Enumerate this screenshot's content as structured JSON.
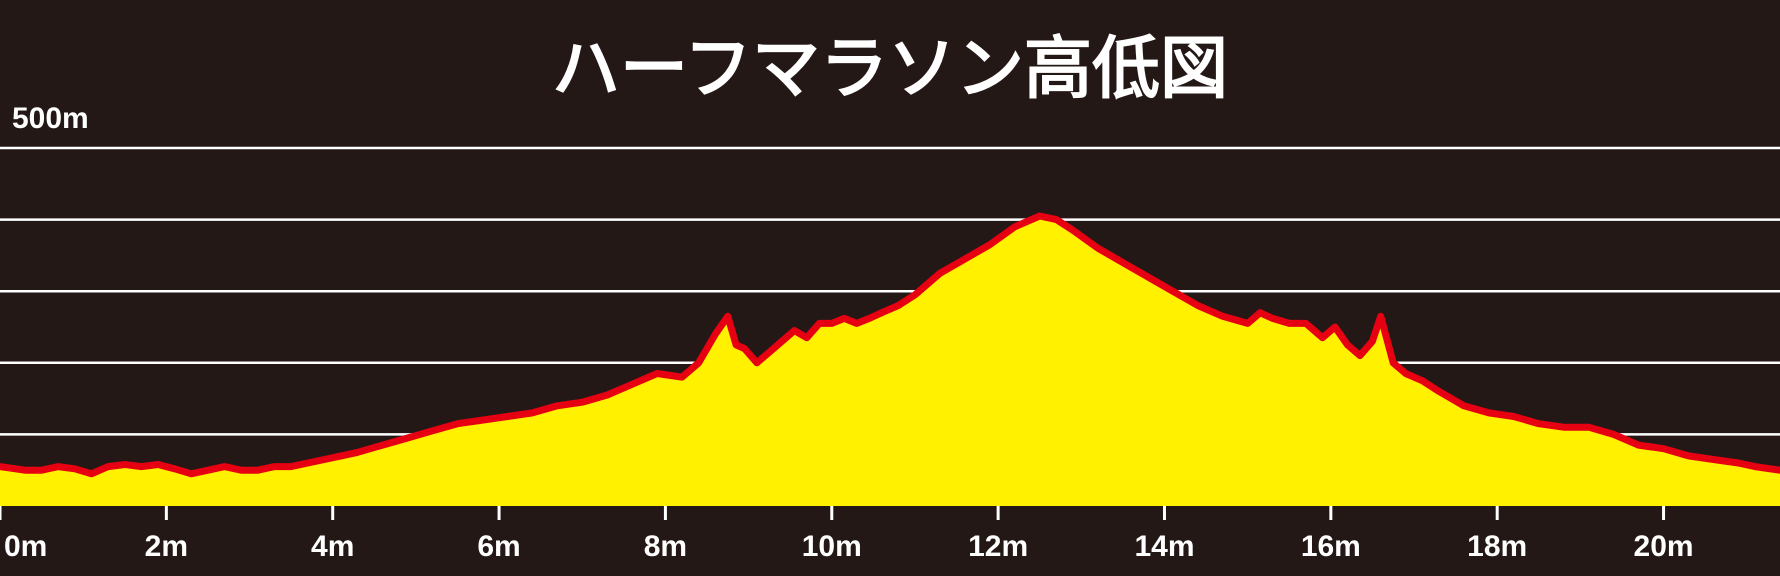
{
  "chart_data": {
    "type": "area",
    "title": "ハーフマラソン高低図",
    "xlabel": "",
    "ylabel": "",
    "xlim": [
      0,
      21.4
    ],
    "ylim": [
      0,
      500
    ],
    "y_top_label": "500m",
    "grid": true,
    "x_ticks": [
      {
        "value": 0,
        "label": "0m"
      },
      {
        "value": 2,
        "label": "2m"
      },
      {
        "value": 4,
        "label": "4m"
      },
      {
        "value": 6,
        "label": "6m"
      },
      {
        "value": 8,
        "label": "8m"
      },
      {
        "value": 10,
        "label": "10m"
      },
      {
        "value": 12,
        "label": "12m"
      },
      {
        "value": 14,
        "label": "14m"
      },
      {
        "value": 16,
        "label": "16m"
      },
      {
        "value": 18,
        "label": "18m"
      },
      {
        "value": 20,
        "label": "20m"
      }
    ],
    "y_gridlines": [
      100,
      200,
      300,
      400,
      500
    ],
    "series": [
      {
        "x": [
          0,
          0.3,
          0.5,
          0.7,
          0.9,
          1.1,
          1.3,
          1.5,
          1.7,
          1.9,
          2.1,
          2.3,
          2.5,
          2.7,
          2.9,
          3.1,
          3.3,
          3.5,
          3.7,
          3.9,
          4.1,
          4.3,
          4.6,
          4.9,
          5.2,
          5.5,
          5.8,
          6.1,
          6.4,
          6.7,
          7.0,
          7.3,
          7.6,
          7.9,
          8.2,
          8.4,
          8.6,
          8.75,
          8.85,
          8.95,
          9.1,
          9.25,
          9.4,
          9.55,
          9.7,
          9.85,
          10.0,
          10.15,
          10.3,
          10.45,
          10.6,
          10.8,
          11.0,
          11.3,
          11.6,
          11.9,
          12.2,
          12.5,
          12.7,
          12.9,
          13.2,
          13.5,
          13.8,
          14.1,
          14.4,
          14.7,
          15.0,
          15.15,
          15.3,
          15.5,
          15.7,
          15.9,
          16.05,
          16.2,
          16.35,
          16.5,
          16.6,
          16.75,
          16.9,
          17.1,
          17.3,
          17.6,
          17.9,
          18.2,
          18.5,
          18.8,
          19.1,
          19.4,
          19.7,
          20.0,
          20.3,
          20.6,
          20.9,
          21.1,
          21.4
        ],
        "values": [
          55,
          50,
          50,
          55,
          52,
          45,
          55,
          58,
          55,
          58,
          52,
          45,
          50,
          55,
          50,
          50,
          55,
          55,
          60,
          65,
          70,
          75,
          85,
          95,
          105,
          115,
          120,
          125,
          130,
          140,
          145,
          155,
          170,
          185,
          180,
          200,
          240,
          265,
          225,
          220,
          200,
          215,
          230,
          245,
          235,
          255,
          255,
          262,
          255,
          262,
          270,
          280,
          295,
          325,
          345,
          365,
          390,
          405,
          400,
          385,
          360,
          340,
          320,
          300,
          280,
          265,
          255,
          270,
          262,
          255,
          255,
          235,
          250,
          225,
          210,
          230,
          265,
          200,
          185,
          175,
          160,
          140,
          130,
          125,
          115,
          110,
          110,
          100,
          85,
          80,
          70,
          65,
          60,
          55,
          50
        ]
      }
    ]
  }
}
